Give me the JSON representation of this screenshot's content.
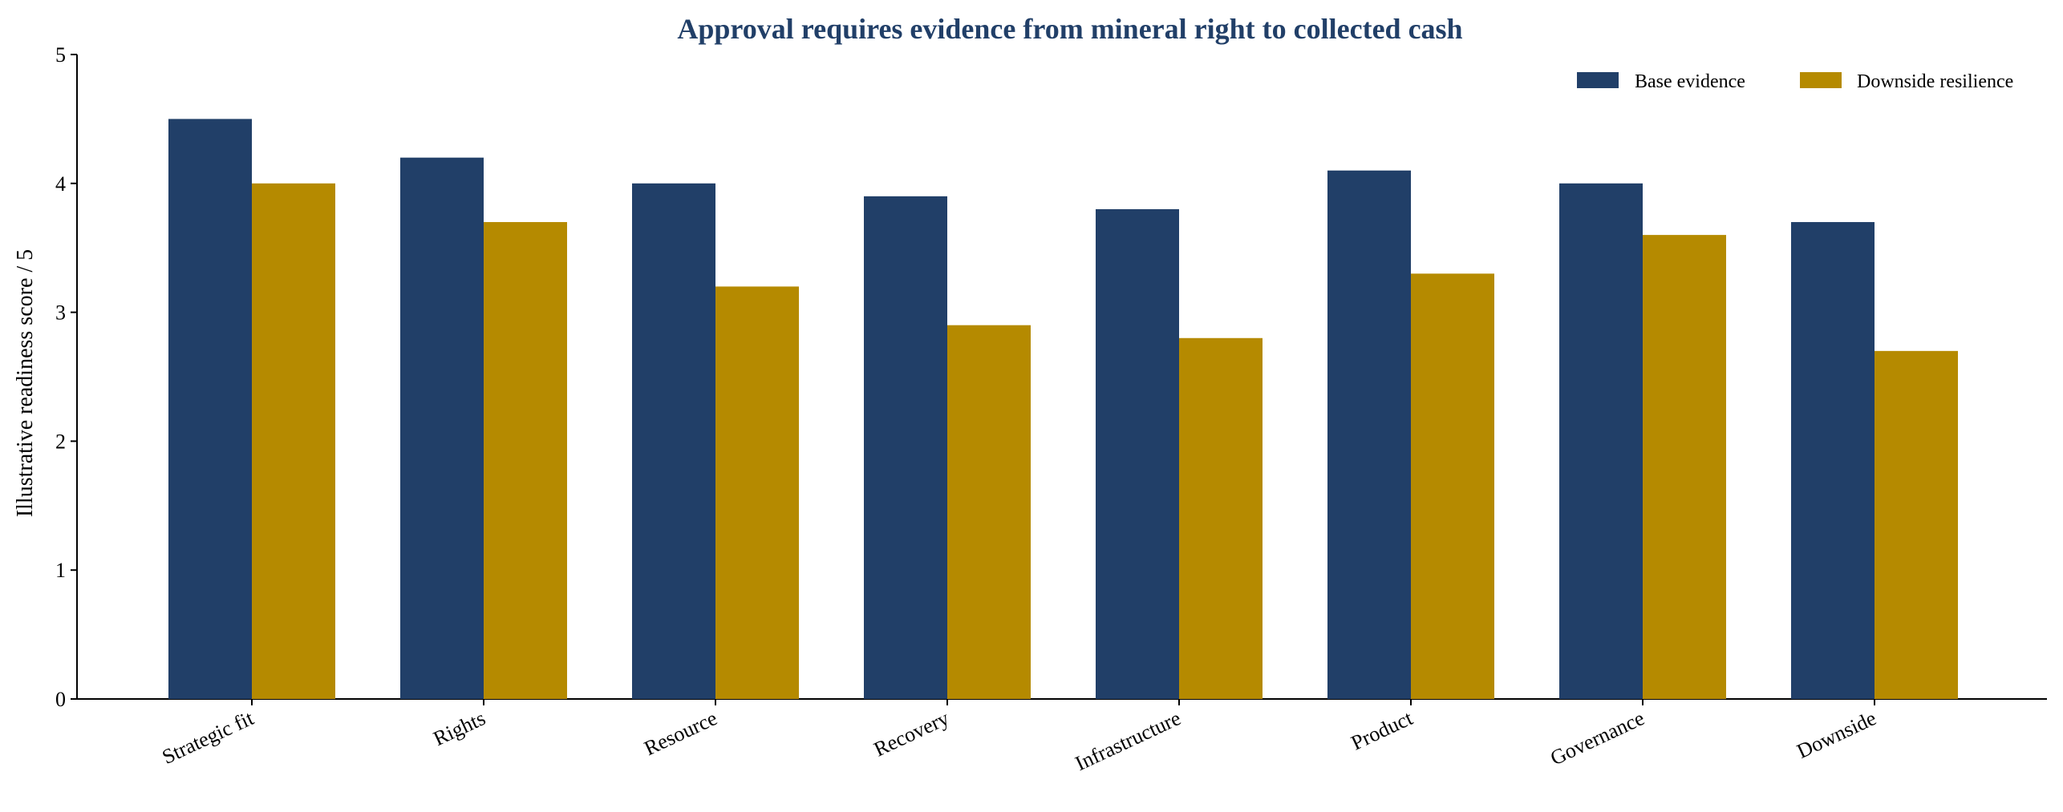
{
  "chart_data": {
    "type": "bar",
    "title": "Approval requires evidence from mineral right to collected cash",
    "xlabel": "",
    "ylabel": "Illustrative readiness score / 5",
    "ylim": [
      0,
      5
    ],
    "yticks": [
      0,
      1,
      2,
      3,
      4,
      5
    ],
    "grid": false,
    "legend_position": "top-right",
    "categories": [
      "Strategic fit",
      "Rights",
      "Resource",
      "Recovery",
      "Infrastructure",
      "Product",
      "Governance",
      "Downside"
    ],
    "series": [
      {
        "name": "Base evidence",
        "color": "#213F68",
        "values": [
          4.5,
          4.2,
          4.0,
          3.9,
          3.8,
          4.1,
          4.0,
          3.7
        ]
      },
      {
        "name": "Downside resilience",
        "color": "#B58A00",
        "values": [
          4.0,
          3.7,
          3.2,
          2.9,
          2.8,
          3.3,
          3.6,
          2.7
        ]
      }
    ],
    "title_color": "#213F68",
    "axis_color": "#000000"
  }
}
